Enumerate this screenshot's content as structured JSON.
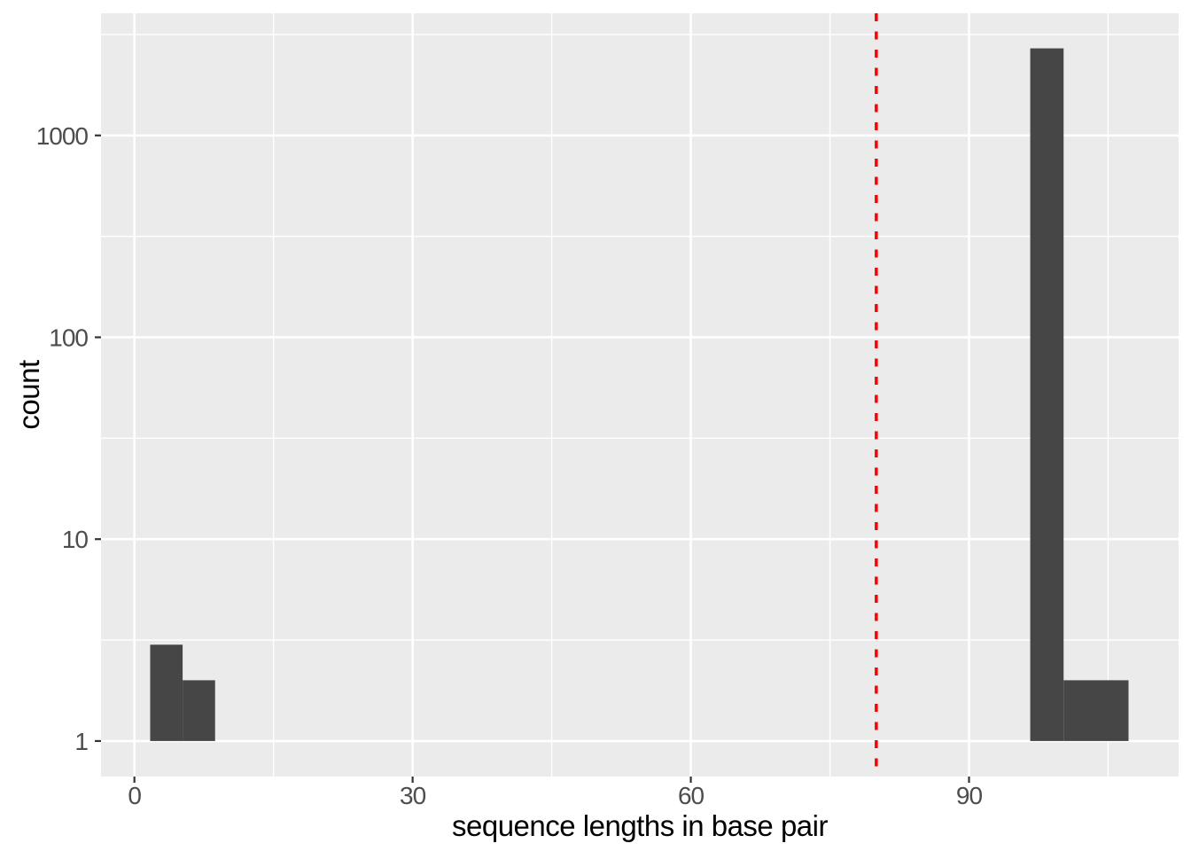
{
  "chart_data": {
    "type": "histogram",
    "xlabel": "sequence lengths in base pair",
    "ylabel": "count",
    "y_scale": "log10",
    "x_domain": [
      -3.6,
      112.6
    ],
    "y_log10_domain": [
      -0.176,
      3.605
    ],
    "x_ticks": [
      0,
      30,
      60,
      90
    ],
    "y_ticks": [
      1,
      10,
      100,
      1000
    ],
    "x_minor_gridlines": [
      15,
      45,
      75,
      105
    ],
    "y_minor_gridlines": [
      3.162,
      31.62,
      316.2,
      3162
    ],
    "bar_baseline_count": 1,
    "bars": [
      {
        "x0": 1.7,
        "x1": 5.2,
        "count": 3
      },
      {
        "x0": 5.2,
        "x1": 8.7,
        "count": 2
      },
      {
        "x0": 96.6,
        "x1": 100.2,
        "count": 2700
      },
      {
        "x0": 100.2,
        "x1": 107.2,
        "count": 2
      }
    ],
    "vline": {
      "x": 80,
      "style": "dashed",
      "color": "#FF0000"
    },
    "legend": "none",
    "grid": "on",
    "colors": {
      "panel_bg": "#EBEBEB",
      "grid": "#FFFFFF",
      "bar": "#464646",
      "tick_mark": "#333333",
      "tick_label": "#4D4D4D",
      "axis_title": "#000000",
      "figure_bg": "#FFFFFF"
    }
  }
}
